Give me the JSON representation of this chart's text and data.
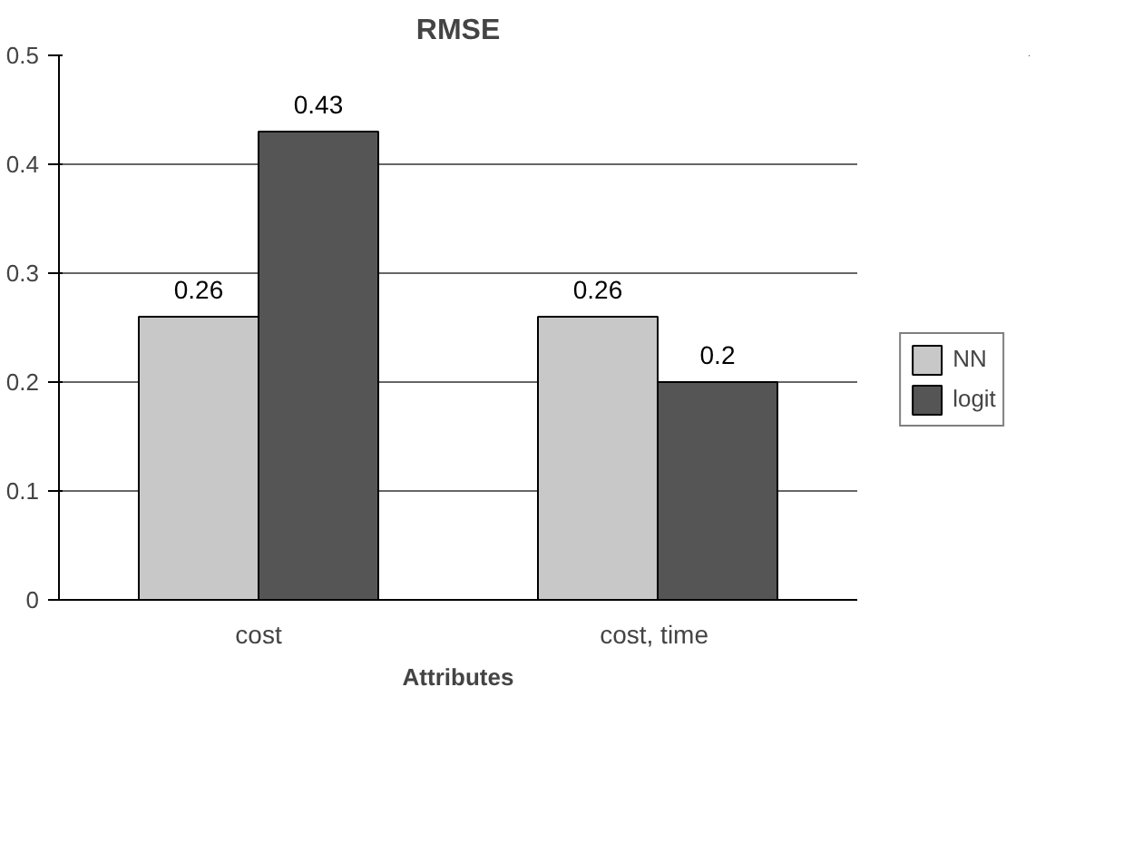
{
  "chart_data": {
    "type": "bar",
    "title": "RMSE",
    "xlabel": "Attributes",
    "categories": [
      "cost",
      "cost,  time"
    ],
    "series": [
      {
        "name": "NN",
        "color": "#c8c8c8",
        "values": [
          0.26,
          0.26
        ]
      },
      {
        "name": "logit",
        "color": "#555555",
        "values": [
          0.43,
          0.2
        ]
      }
    ],
    "ylim": [
      0,
      0.5
    ],
    "yticks": [
      0,
      0.1,
      0.2,
      0.3,
      0.4,
      0.5
    ],
    "grid": "y",
    "legend": "right",
    "data_labels": true
  }
}
